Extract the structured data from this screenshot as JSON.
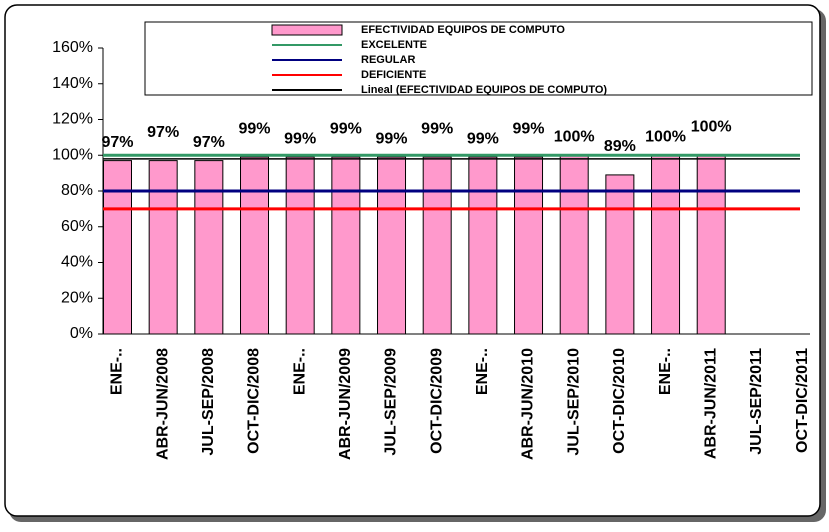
{
  "chart_data": {
    "type": "bar",
    "categories": [
      "ENE-..",
      "ABR-JUN/2008",
      "JUL-SEP/2008",
      "OCT-DIC/2008",
      "ENE-..",
      "ABR-JUN/2009",
      "JUL-SEP/2009",
      "OCT-DIC/2009",
      "ENE-..",
      "ABR-JUN/2010",
      "JUL-SEP/2010",
      "OCT-DIC/2010",
      "ENE-..",
      "ABR-JUN/2011",
      "JUL-SEP/2011",
      "OCT-DIC/2011"
    ],
    "series": [
      {
        "name": "EFECTIVIDAD EQUIPOS DE COMPUTO",
        "color": "#ff99cc",
        "kind": "bar",
        "values": [
          97,
          97,
          97,
          99,
          99,
          99,
          99,
          99,
          99,
          99,
          100,
          89,
          100,
          100,
          null,
          null
        ],
        "value_labels": [
          "97%",
          "97%",
          "97%",
          "99%",
          "99%",
          "99%",
          "99%",
          "99%",
          "99%",
          "99%",
          "100%",
          "89%",
          "100%",
          "100%",
          null,
          null
        ]
      },
      {
        "name": "EXCELENTE",
        "color": "#339966",
        "kind": "line",
        "values": [
          100,
          100,
          100,
          100,
          100,
          100,
          100,
          100,
          100,
          100,
          100,
          100,
          100,
          100,
          100,
          100
        ]
      },
      {
        "name": "REGULAR",
        "color": "#000080",
        "kind": "line",
        "values": [
          80,
          80,
          80,
          80,
          80,
          80,
          80,
          80,
          80,
          80,
          80,
          80,
          80,
          80,
          80,
          80
        ]
      },
      {
        "name": "DEFICIENTE",
        "color": "#ff0000",
        "kind": "line",
        "values": [
          70,
          70,
          70,
          70,
          70,
          70,
          70,
          70,
          70,
          70,
          70,
          70,
          70,
          70,
          70,
          70
        ]
      },
      {
        "name": "Lineal (EFECTIVIDAD EQUIPOS DE COMPUTO)",
        "color": "#000000",
        "kind": "line",
        "values": [
          98,
          98,
          98,
          98,
          98,
          98,
          98,
          98,
          98,
          98,
          98,
          98,
          98,
          98,
          98,
          98
        ]
      }
    ],
    "ylim": [
      0,
      160
    ],
    "yticks": [
      {
        "value": 0,
        "label": "0%"
      },
      {
        "value": 20,
        "label": "20%"
      },
      {
        "value": 40,
        "label": "40%"
      },
      {
        "value": 60,
        "label": "60%"
      },
      {
        "value": 80,
        "label": "80%"
      },
      {
        "value": 100,
        "label": "100%"
      },
      {
        "value": 120,
        "label": "120%"
      },
      {
        "value": 140,
        "label": "140%"
      },
      {
        "value": 160,
        "label": "160%"
      }
    ],
    "legend": "top"
  }
}
